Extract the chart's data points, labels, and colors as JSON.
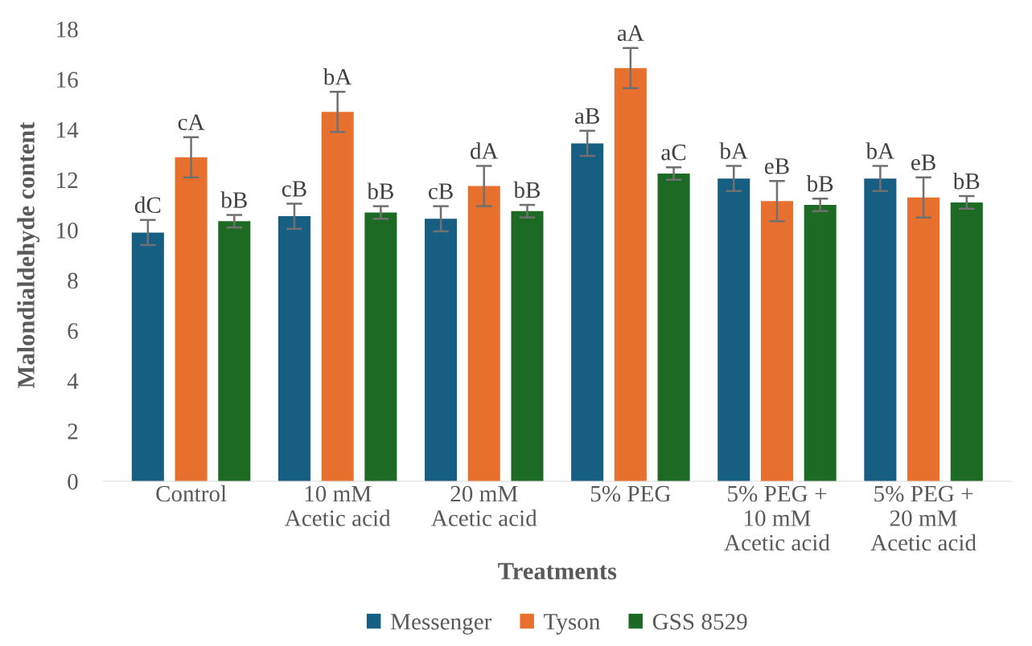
{
  "chart_data": {
    "type": "bar",
    "xlabel": "Treatments",
    "ylabel": "Malondialdehyde content",
    "categories": [
      "Control",
      "10 mM\nAcetic acid",
      "20 mM\nAcetic acid",
      "5% PEG",
      "5% PEG +\n10 mM\nAcetic acid",
      "5% PEG +\n20 mM\nAcetic acid"
    ],
    "series": [
      {
        "name": "Messenger",
        "color": "#175e83",
        "values": [
          9.9,
          10.55,
          10.45,
          13.45,
          12.05,
          12.05
        ],
        "errors": [
          0.5,
          0.5,
          0.5,
          0.5,
          0.5,
          0.5
        ],
        "value_labels": [
          "dC",
          "cB",
          "cB",
          "aB",
          "bA",
          "bA"
        ]
      },
      {
        "name": "Tyson",
        "color": "#e8702f",
        "values": [
          12.9,
          14.7,
          11.75,
          16.45,
          11.15,
          11.3
        ],
        "errors": [
          0.8,
          0.8,
          0.8,
          0.8,
          0.8,
          0.8
        ],
        "value_labels": [
          "cA",
          "bA",
          "dA",
          "aA",
          "eB",
          "eB"
        ]
      },
      {
        "name": "GSS 8529",
        "color": "#1c6a23",
        "values": [
          10.35,
          10.7,
          10.75,
          12.25,
          11.0,
          11.1
        ],
        "errors": [
          0.25,
          0.25,
          0.25,
          0.25,
          0.25,
          0.25
        ],
        "value_labels": [
          "bB",
          "bB",
          "bB",
          "aC",
          "bB",
          "bB"
        ]
      }
    ],
    "ylim": [
      0,
      18
    ],
    "yticks": [
      0,
      2,
      4,
      6,
      8,
      10,
      12,
      14,
      16,
      18
    ],
    "grid": false,
    "legend": "bottom"
  }
}
